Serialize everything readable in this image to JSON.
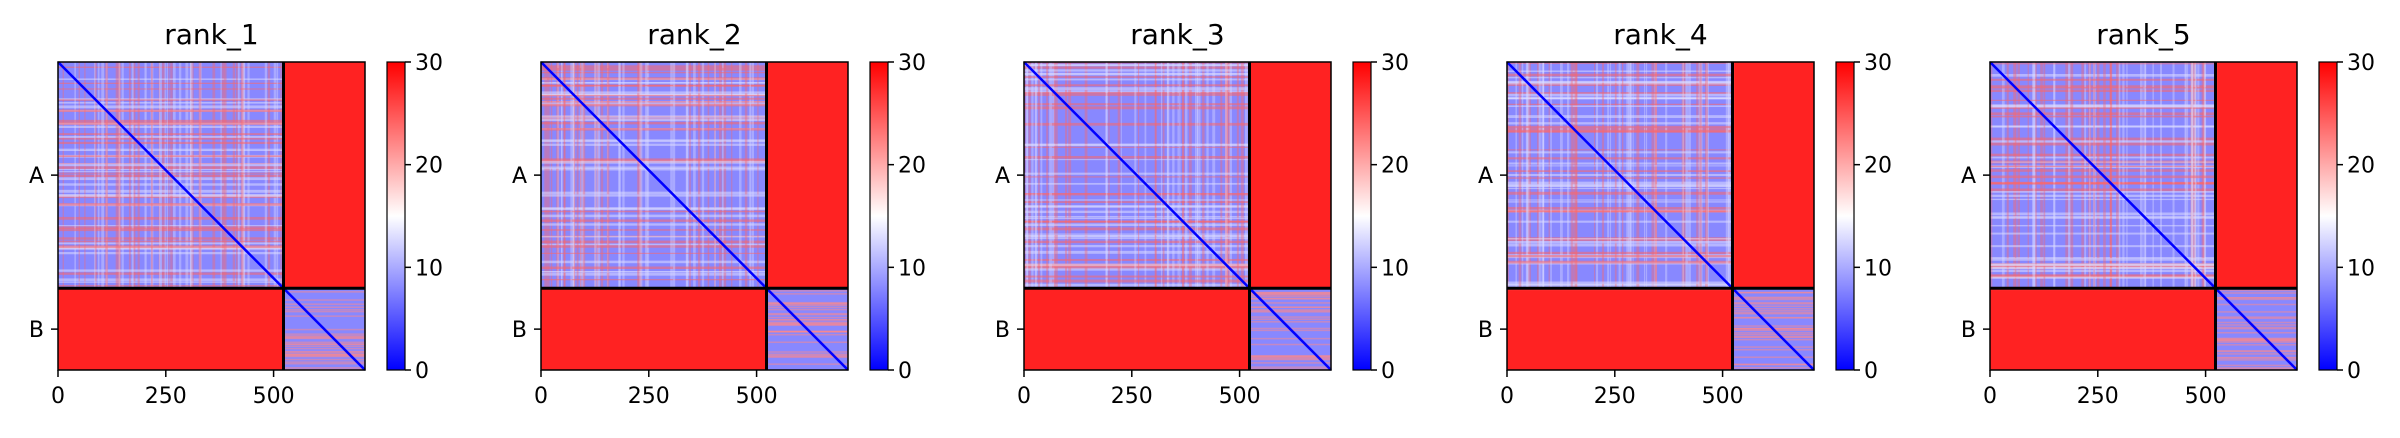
{
  "colorbar": {
    "min": 0,
    "max": 30,
    "ticks": [
      0,
      10,
      20,
      30
    ],
    "colormap": [
      "#0000ff",
      "#ffffff",
      "#ff0000"
    ]
  },
  "chart_data": [
    {
      "type": "heatmap",
      "title": "rank_1",
      "chains": [
        {
          "name": "A",
          "start": 0,
          "end": 523
        },
        {
          "name": "B",
          "start": 523,
          "end": 712
        }
      ],
      "x_ticks": [
        0,
        250,
        500
      ],
      "xlim": [
        0,
        712
      ],
      "ylim": [
        712,
        0
      ],
      "value_range": [
        0,
        30
      ],
      "description_levels": {
        "intra_A": 8,
        "intra_B": 8,
        "inter_chain": 28
      }
    },
    {
      "type": "heatmap",
      "title": "rank_2",
      "chains": [
        {
          "name": "A",
          "start": 0,
          "end": 523
        },
        {
          "name": "B",
          "start": 523,
          "end": 712
        }
      ],
      "x_ticks": [
        0,
        250,
        500
      ],
      "xlim": [
        0,
        712
      ],
      "ylim": [
        712,
        0
      ],
      "value_range": [
        0,
        30
      ],
      "description_levels": {
        "intra_A": 8,
        "intra_B": 8,
        "inter_chain": 28
      }
    },
    {
      "type": "heatmap",
      "title": "rank_3",
      "chains": [
        {
          "name": "A",
          "start": 0,
          "end": 523
        },
        {
          "name": "B",
          "start": 523,
          "end": 712
        }
      ],
      "x_ticks": [
        0,
        250,
        500
      ],
      "xlim": [
        0,
        712
      ],
      "ylim": [
        712,
        0
      ],
      "value_range": [
        0,
        30
      ],
      "description_levels": {
        "intra_A": 8,
        "intra_B": 8,
        "inter_chain": 28
      }
    },
    {
      "type": "heatmap",
      "title": "rank_4",
      "chains": [
        {
          "name": "A",
          "start": 0,
          "end": 523
        },
        {
          "name": "B",
          "start": 523,
          "end": 712
        }
      ],
      "x_ticks": [
        0,
        250,
        500
      ],
      "xlim": [
        0,
        712
      ],
      "ylim": [
        712,
        0
      ],
      "value_range": [
        0,
        30
      ],
      "description_levels": {
        "intra_A": 8,
        "intra_B": 8,
        "inter_chain": 28
      }
    },
    {
      "type": "heatmap",
      "title": "rank_5",
      "chains": [
        {
          "name": "A",
          "start": 0,
          "end": 523
        },
        {
          "name": "B",
          "start": 523,
          "end": 712
        }
      ],
      "x_ticks": [
        0,
        250,
        500
      ],
      "xlim": [
        0,
        712
      ],
      "ylim": [
        712,
        0
      ],
      "value_range": [
        0,
        30
      ],
      "description_levels": {
        "intra_A": 8,
        "intra_B": 8,
        "inter_chain": 28
      }
    }
  ]
}
